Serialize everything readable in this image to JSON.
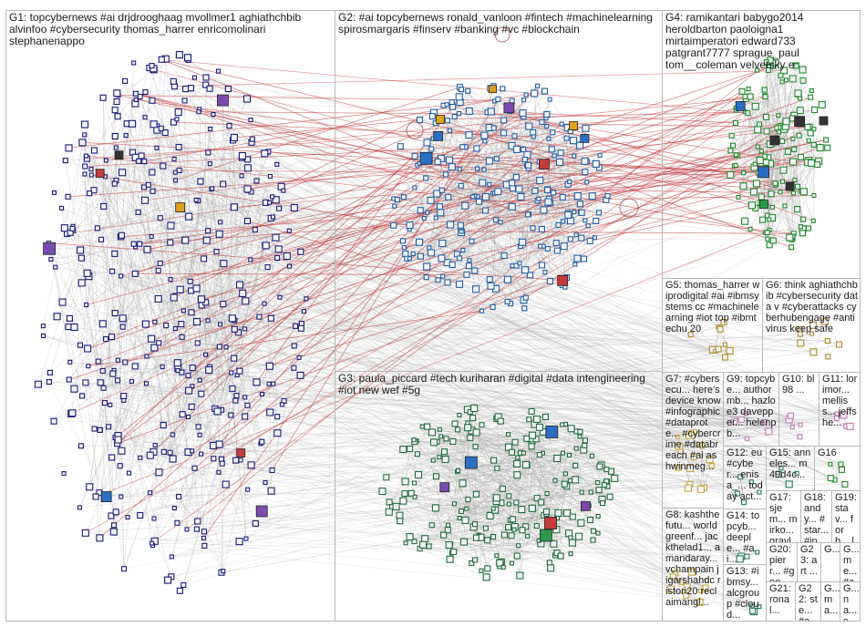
{
  "groups": [
    {
      "id": "G1",
      "label": "G1: topcybernews #ai drjdrooghaag mvollmer1 aghiathchbib alvinfoo #cybersecurity thomas_harrer enricomolinari stephanenappo",
      "color": "#1a1a7a"
    },
    {
      "id": "G2",
      "label": "G2: #ai topcybernews ronald_vanloon #fintech #machinelearning spirosmargaris #finserv #banking #vc #blockchain",
      "color": "#1f5fa8"
    },
    {
      "id": "G3",
      "label": "G3: paula_piccard #tech kuriharan #digital #data intengineering #iot new wef #5g",
      "color": "#1e6b3a"
    },
    {
      "id": "G4",
      "label": "G4: ramikantari babygo2014 heroldbarton paoloigna1 mirtaimperatori edward733 patgrant7777 sprague_paul tom__coleman velvetsky e",
      "color": "#1f8a2a"
    },
    {
      "id": "G5",
      "label": "G5: thomas_harrer wiprodigital #ai #ibmsystems cc #machinelearning #iot top #ibmtechu 20",
      "color": "#b08a2a"
    },
    {
      "id": "G6",
      "label": "G6: think aghiathchbib #cybersecurity data v #cyberattacks cyberhubengage #antivirus keep safe",
      "color": "#b08a2a"
    },
    {
      "id": "G7",
      "label": "G7: #cybersecu... here's device know #infographic #dataprote... #cybercrime #databreach #ai ashwinmeg...",
      "color": "#c6a83a"
    },
    {
      "id": "G8",
      "label": "G8: kashthefutu... worldgreenf... jackthelad1... amandaray... vchampain jigarshahdc ristori20 reclaimangl...",
      "color": "#c6a83a"
    },
    {
      "id": "G9",
      "label": "G9: topcybe... authormb... hazloe3 davepper... helenpb...",
      "color": "#c67ab0"
    },
    {
      "id": "G10",
      "label": "G10: bl98 ...",
      "color": "#c67ab0"
    },
    {
      "id": "G11",
      "label": "G11: lorimor... melliss... jeffshe...",
      "color": "#c67ab0"
    },
    {
      "id": "G12",
      "label": "G12: eu #cyber... enisa_... today act...",
      "color": "#2a7a5a"
    },
    {
      "id": "G13",
      "label": "G13: #ibmsy... alcgroup #cloud...",
      "color": "#2a7a5a"
    },
    {
      "id": "G14",
      "label": "G14: topcyb... deeple... #ai...",
      "color": "#2a7a5a"
    },
    {
      "id": "G15",
      "label": "G15: anneles... m49d4c...",
      "color": "#2a7a5a"
    },
    {
      "id": "G16",
      "label": "G16",
      "color": "#2a8a2a"
    },
    {
      "id": "G17",
      "label": "G17: sjem... mirko... grayli... #inn...",
      "color": "#c6a83a"
    },
    {
      "id": "G18",
      "label": "G18: andy... #star... #inn...",
      "color": "#c6a83a"
    },
    {
      "id": "G19",
      "label": "G19: stav... forb... lola...",
      "color": "#c6a83a"
    },
    {
      "id": "G20",
      "label": "G20: pierr... #goo...",
      "color": "#c6a83a"
    },
    {
      "id": "G21",
      "label": "G21: ronal...",
      "color": "#c6a83a"
    },
    {
      "id": "G22",
      "label": "G22: ste... #ai...",
      "color": "#c6a83a"
    },
    {
      "id": "G23",
      "label": "G23: art ...",
      "color": "#c6a83a"
    },
    {
      "id": "G24",
      "label": "G...",
      "color": "#c6a83a"
    },
    {
      "id": "G25",
      "label": "G... me... #ai...",
      "color": "#c6a83a"
    },
    {
      "id": "G26",
      "label": "G... ma... ...",
      "color": "#c6a83a"
    },
    {
      "id": "G27",
      "label": "G... na... cs...",
      "color": "#c6a83a"
    }
  ],
  "edge_colors": {
    "gray": "#9a9a9a",
    "red": "#c0282a",
    "self_loop": "#8b1a1a"
  }
}
